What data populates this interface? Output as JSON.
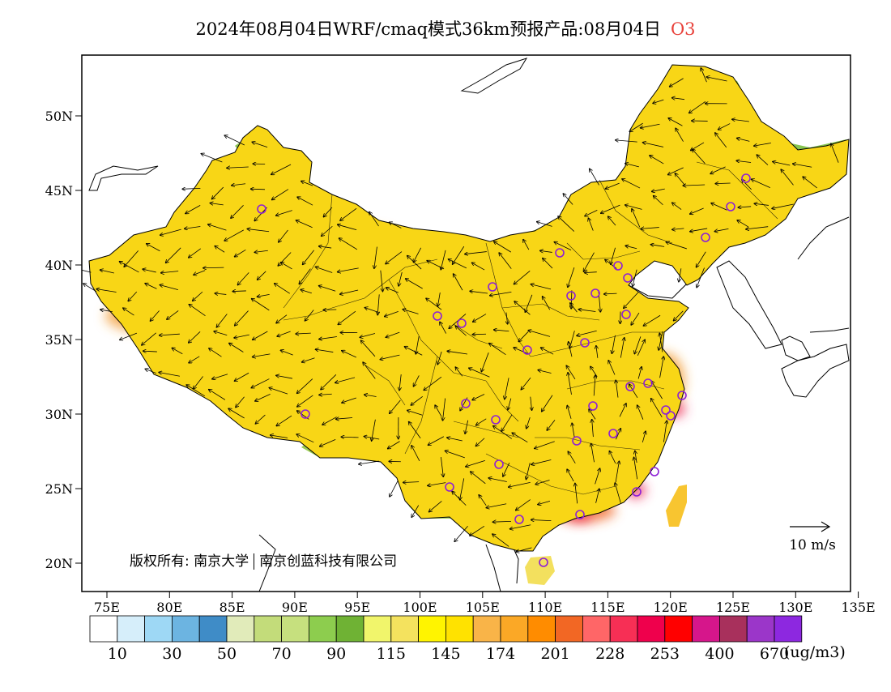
{
  "title": {
    "main": "2024年08月04日WRF/cmaq模式36km预报产品:08月04日",
    "pollutant": "O3"
  },
  "credit": {
    "prefix": "版权所有:",
    "org1": "南京大学",
    "org2": "南京创蓝科技有限公司"
  },
  "wind_ref": {
    "label": "10 m/s"
  },
  "axes": {
    "lon_labels": [
      "75E",
      "80E",
      "85E",
      "90E",
      "95E",
      "100E",
      "105E",
      "110E",
      "115E",
      "120E",
      "125E",
      "130E",
      "135E"
    ],
    "lat_labels": [
      "50N",
      "45N",
      "40N",
      "35N",
      "30N",
      "25N",
      "20N"
    ]
  },
  "legend": {
    "unit": "(ug/m3)",
    "colors": [
      "#ffffff",
      "#d6eefa",
      "#9ed8f5",
      "#6cb4e1",
      "#3f8cc7",
      "#e1ebba",
      "#c3dc7a",
      "#c6e07e",
      "#8dcd4e",
      "#6fb234",
      "#f1f56b",
      "#f4e25e",
      "#fff400",
      "#ffe200",
      "#f9b448",
      "#fba826",
      "#ff8c00",
      "#f26724",
      "#ff6667",
      "#f72f55",
      "#ef004c",
      "#ff0000",
      "#d6168b",
      "#a8305c",
      "#9b36c9",
      "#8d28e0"
    ],
    "labels": [
      "10",
      "30",
      "50",
      "70",
      "90",
      "115",
      "145",
      "174",
      "201",
      "228",
      "253",
      "400",
      "670"
    ]
  }
}
